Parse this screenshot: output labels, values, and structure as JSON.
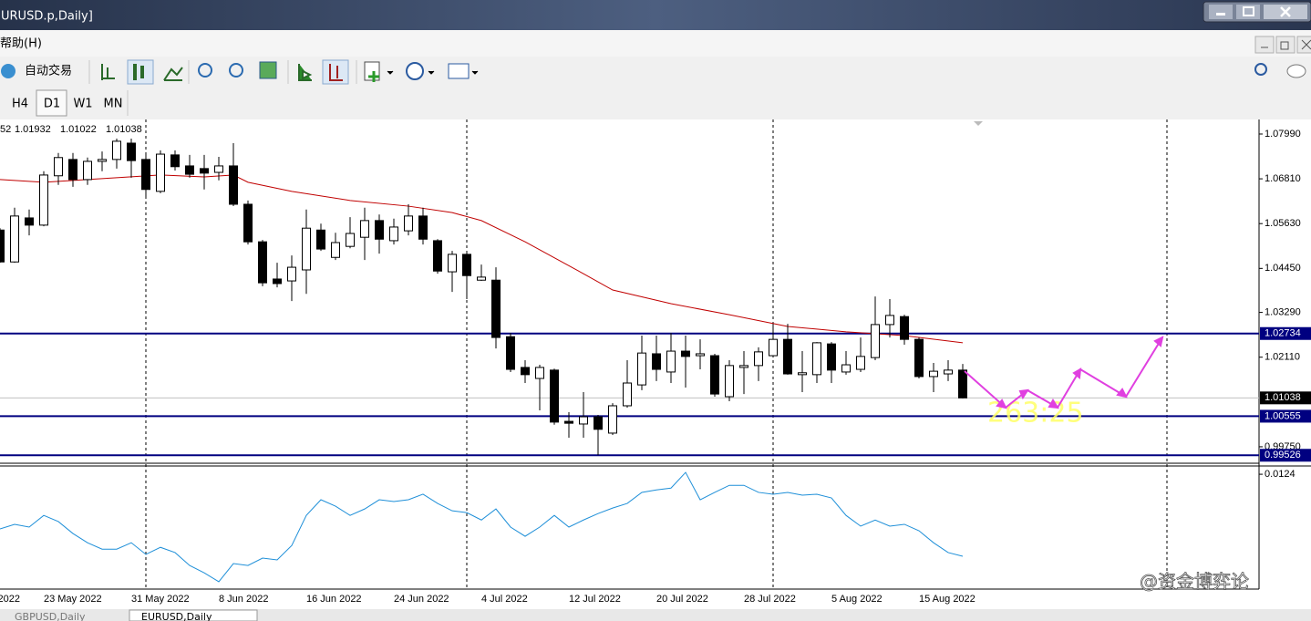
{
  "window": {
    "title": "URUSD.p,Daily]",
    "menu": "帮助(H)",
    "toolbar_button": "自动交易",
    "periods": [
      "H4",
      "D1",
      "W1",
      "MN"
    ],
    "tabs": [
      "GBPUSD,Daily",
      "EURUSD,Daily"
    ],
    "watermark": "@资金博弈论"
  },
  "chart_data": {
    "type": "candlestick",
    "header_prefix": "52",
    "x_edge_label": "2022",
    "categories": [
      null,
      null,
      null,
      "23 May 2022",
      null,
      null,
      null,
      null,
      null,
      "31 May 2022",
      null,
      null,
      null,
      null,
      null,
      "8 Jun 2022",
      null,
      null,
      null,
      null,
      null,
      "16 Jun 2022",
      null,
      null,
      null,
      null,
      null,
      "24 Jun 2022",
      null,
      null,
      null,
      null,
      null,
      "4 Jul 2022",
      null,
      null,
      null,
      null,
      null,
      "12 Jul 2022",
      null,
      null,
      null,
      null,
      null,
      "20 Jul 2022",
      null,
      null,
      null,
      null,
      null,
      "28 Jul 2022",
      null,
      null,
      null,
      null,
      null,
      "5 Aug 2022",
      null,
      null,
      null,
      null,
      null,
      "15 Aug 2022",
      null,
      null,
      null
    ],
    "open": [
      1.0546,
      1.0462,
      1.0578,
      1.0559,
      1.0689,
      1.0732,
      1.0679,
      1.0727,
      1.0732,
      1.0775,
      1.0732,
      1.0648,
      1.0744,
      1.0715,
      1.0708,
      1.0698,
      1.0715,
      1.0614,
      1.0515,
      1.0417,
      1.0412,
      1.0441,
      1.0546,
      1.0474,
      1.0503,
      1.0527,
      1.0571,
      1.0518,
      1.0544,
      1.0583,
      1.0518,
      1.0436,
      1.0482,
      1.0414,
      1.0414,
      1.0265,
      1.0184,
      1.0155,
      1.0177,
      1.0042,
      1.0035,
      1.0054,
      1.0011,
      1.0083,
      1.0138,
      1.022,
      1.0172,
      1.0227,
      1.0215,
      1.0215,
      1.0107,
      1.0184,
      1.0189,
      1.0215,
      1.0258,
      1.0165,
      1.0165,
      1.0246,
      1.0172,
      1.0179,
      1.021,
      1.0297,
      1.0318,
      1.0258,
      1.016,
      1.0167,
      1.0177
    ],
    "high": [
      1.0551,
      1.0605,
      1.06,
      1.0701,
      1.0749,
      1.0749,
      1.0737,
      1.0753,
      1.0787,
      1.0787,
      1.0749,
      1.0756,
      1.0756,
      1.0744,
      1.0744,
      1.0739,
      1.0775,
      1.0624,
      1.052,
      1.046,
      1.0479,
      1.06,
      1.0563,
      1.0539,
      1.058,
      1.0605,
      1.0587,
      1.0576,
      1.0614,
      1.0605,
      1.0522,
      1.0491,
      1.0489,
      1.0455,
      1.0448,
      1.0275,
      1.0203,
      1.0191,
      1.0181,
      1.0066,
      1.0119,
      1.0059,
      1.009,
      1.0203,
      1.0268,
      1.0268,
      1.0275,
      1.0268,
      1.0258,
      1.022,
      1.0203,
      1.0227,
      1.0237,
      1.0299,
      1.0299,
      1.0227,
      1.0251,
      1.0251,
      1.0227,
      1.0263,
      1.0371,
      1.0364,
      1.0323,
      1.0263,
      1.0196,
      1.0203,
      1.01932
    ],
    "low": [
      1.046,
      1.046,
      1.0532,
      1.0556,
      1.0665,
      1.066,
      1.0665,
      1.0701,
      1.0708,
      1.0684,
      1.0629,
      1.0643,
      1.0703,
      1.0684,
      1.0653,
      1.0677,
      1.0609,
      1.0508,
      1.0398,
      1.0395,
      1.0359,
      1.0378,
      1.0491,
      1.0467,
      1.0498,
      1.0467,
      1.0484,
      1.0508,
      1.0532,
      1.0508,
      1.0431,
      1.0383,
      1.0364,
      1.0412,
      1.0234,
      1.0172,
      1.0143,
      1.0071,
      1.0033,
      0.9999,
      0.9999,
      0.9953,
      1.0006,
      1.0078,
      1.0124,
      1.0148,
      1.0143,
      1.0131,
      1.0179,
      1.0107,
      1.0095,
      1.0114,
      1.0148,
      1.021,
      1.0165,
      1.0119,
      1.0143,
      1.0143,
      1.0165,
      1.0172,
      1.0203,
      1.0263,
      1.0244,
      1.0155,
      1.0119,
      1.0148,
      1.01022
    ],
    "close": [
      1.0462,
      1.0583,
      1.0559,
      1.0691,
      1.0737,
      1.0679,
      1.0727,
      1.0732,
      1.078,
      1.0729,
      1.0653,
      1.0746,
      1.0713,
      1.0693,
      1.0696,
      1.0715,
      1.0614,
      1.0515,
      1.0407,
      1.0405,
      1.0448,
      1.0551,
      1.0496,
      1.0513,
      1.0537,
      1.0571,
      1.0522,
      1.0554,
      1.0583,
      1.0522,
      1.0438,
      1.0482,
      1.0426,
      1.0422,
      1.0263,
      1.0179,
      1.0165,
      1.0184,
      1.004,
      1.0037,
      1.0054,
      1.0021,
      1.0083,
      1.0143,
      1.0222,
      1.0179,
      1.0227,
      1.0213,
      1.022,
      1.0114,
      1.0189,
      1.0189,
      1.0225,
      1.0258,
      1.0167,
      1.017,
      1.0249,
      1.0177,
      1.0191,
      1.0213,
      1.0297,
      1.0321,
      1.0258,
      1.016,
      1.0174,
      1.0177,
      1.01038
    ],
    "up_color": "#ffffff",
    "down_color": "#000000",
    "ylim": [
      0.9934,
      1.0835
    ],
    "yticks": [
      {
        "value": 1.0799,
        "label": "1.07990"
      },
      {
        "value": 1.0681,
        "label": "1.06810"
      },
      {
        "value": 1.0563,
        "label": "1.05630"
      },
      {
        "value": 1.0445,
        "label": "1.04450"
      },
      {
        "value": 1.0329,
        "label": "1.03290"
      },
      {
        "value": 1.0211,
        "label": "1.02110"
      },
      {
        "value": 0.9975,
        "label": "0.99750"
      }
    ],
    "levels": [
      1.02734,
      1.00555,
      0.99526
    ],
    "level_color": "#000080",
    "bid": 1.01038,
    "bid_color": "#c0c0c0",
    "ma": {
      "color": "#c00000",
      "x": [
        0,
        3,
        8,
        11,
        14,
        16,
        17,
        20,
        24,
        28,
        31,
        33,
        36,
        40,
        42,
        46,
        50,
        54,
        58,
        62,
        66
      ],
      "values": [
        1.0679,
        1.0672,
        1.0684,
        1.0691,
        1.0686,
        1.0691,
        1.0672,
        1.0648,
        1.0624,
        1.0609,
        1.0592,
        1.0571,
        1.0515,
        1.0431,
        1.0388,
        1.0352,
        1.0323,
        1.0292,
        1.0278,
        1.0268,
        1.0249
      ]
    },
    "indicator": {
      "color": "#1e8fd8",
      "ylim": [
        -0.0247,
        0.0148
      ],
      "yticks": [
        0.0124
      ],
      "values": [
        -0.0054,
        -0.0039,
        -0.0048,
        -0.001,
        -0.003,
        -0.0069,
        -0.0099,
        -0.012,
        -0.012,
        -0.0099,
        -0.0137,
        -0.0114,
        -0.0131,
        -0.0173,
        -0.0197,
        -0.0226,
        -0.0167,
        -0.0173,
        -0.0149,
        -0.0155,
        -0.0108,
        -0.001,
        0.0041,
        0.002,
        -0.001,
        0.0011,
        0.0041,
        0.0035,
        0.0041,
        0.0059,
        0.0029,
        0.0005,
        -0.0001,
        -0.0025,
        0.0011,
        -0.0048,
        -0.0078,
        -0.0048,
        -0.001,
        -0.0048,
        -0.0025,
        -0.0004,
        0.0014,
        0.0029,
        0.0065,
        0.0073,
        0.0079,
        0.013,
        0.0041,
        0.0065,
        0.0088,
        0.0088,
        0.0065,
        0.0059,
        0.0065,
        0.0056,
        0.0059,
        0.0047,
        -0.001,
        -0.0045,
        -0.0025,
        -0.0045,
        -0.0039,
        -0.006,
        -0.0099,
        -0.0131,
        -0.0143
      ]
    },
    "annotation": "263:25",
    "annotation_color": "#ffff66"
  }
}
